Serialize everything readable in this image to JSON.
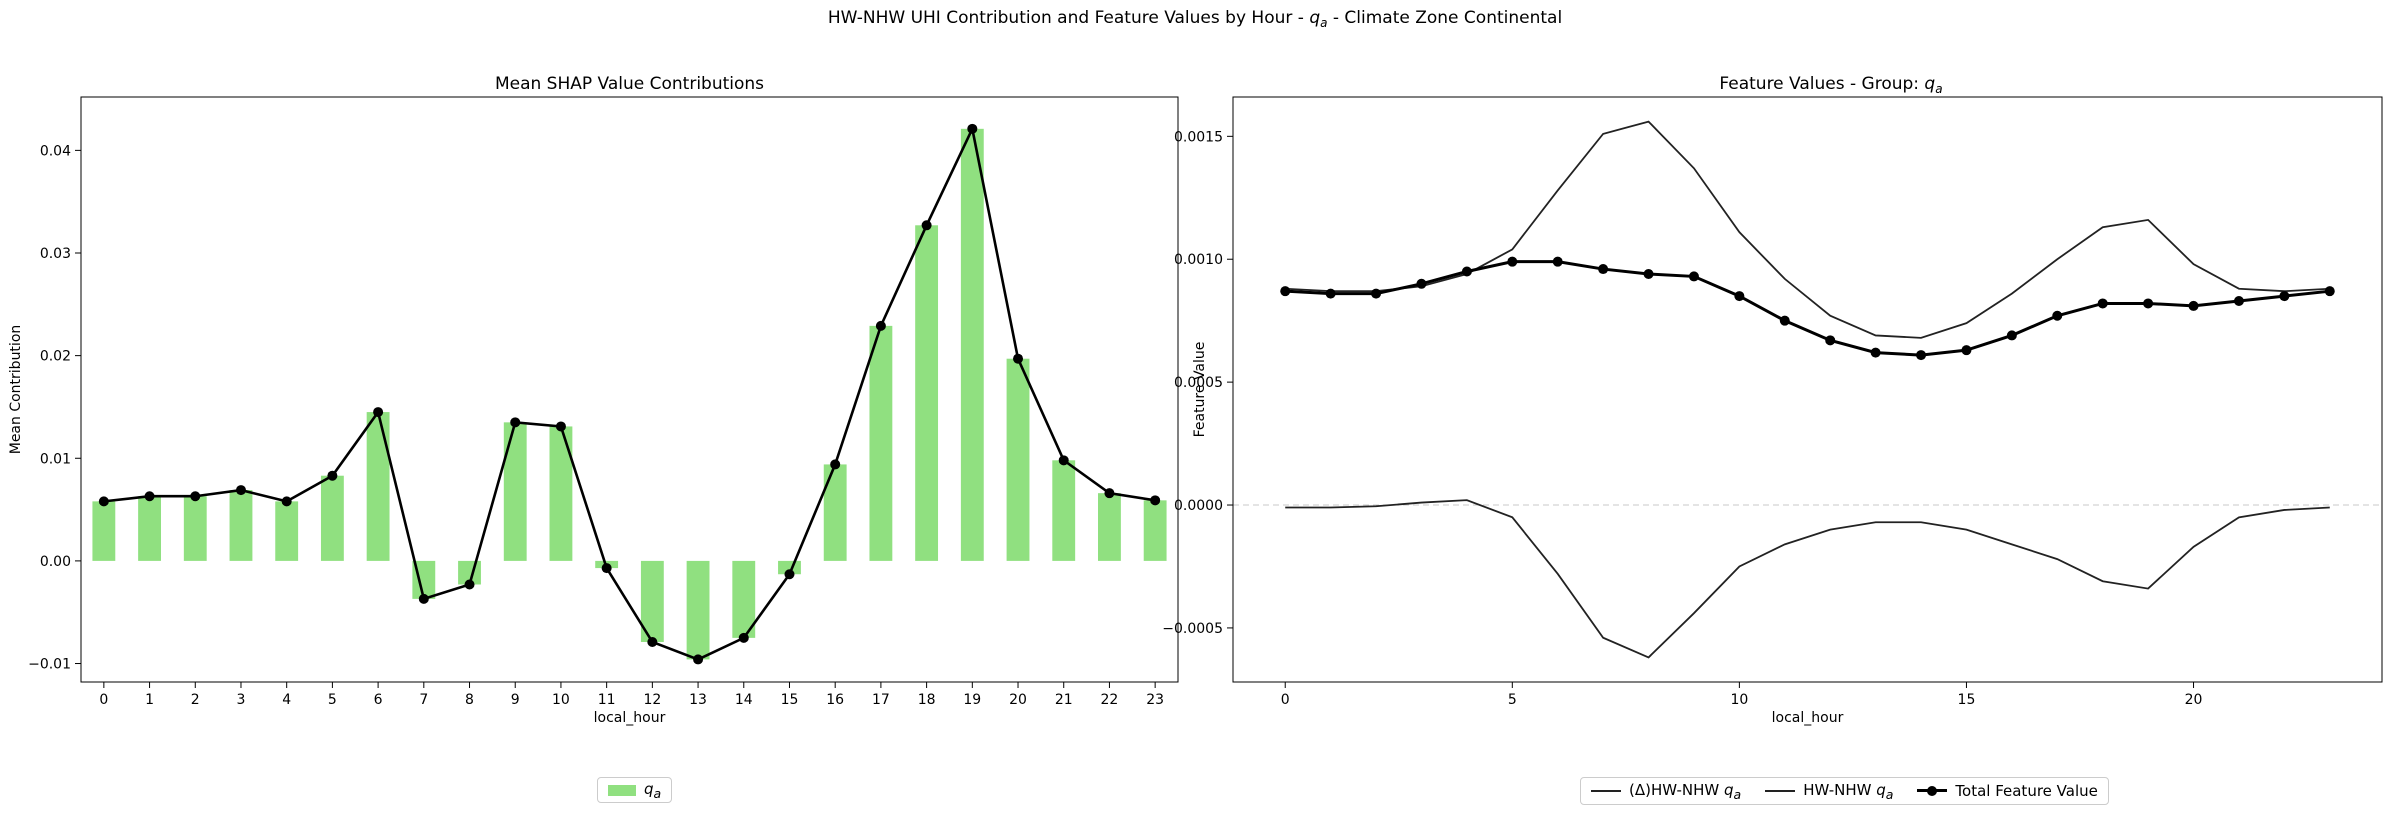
{
  "figure": {
    "suptitle": "HW-NHW UHI Contribution and Feature Values by Hour - q_a - Climate Zone Continental",
    "suptitle_pre": "HW-NHW UHI Contribution and Feature Values by Hour - ",
    "suptitle_post": " - Climate Zone Continental"
  },
  "chart_data": [
    {
      "type": "bar",
      "title": "Mean SHAP Value Contributions",
      "xlabel": "local_hour",
      "ylabel": "Mean Contribution",
      "categories": [
        "0",
        "1",
        "2",
        "3",
        "4",
        "5",
        "6",
        "7",
        "8",
        "9",
        "10",
        "11",
        "12",
        "13",
        "14",
        "15",
        "16",
        "17",
        "18",
        "19",
        "20",
        "21",
        "22",
        "23"
      ],
      "ylim": [
        -0.0118,
        0.0452
      ],
      "yticks": [
        -0.01,
        0.0,
        0.01,
        0.02,
        0.03,
        0.04
      ],
      "ytick_labels": [
        "−0.01",
        "0.00",
        "0.01",
        "0.02",
        "0.03",
        "0.04"
      ],
      "series": [
        {
          "name": "q_a",
          "kind": "bar",
          "color": "#90e080",
          "values": [
            0.0058,
            0.0063,
            0.0063,
            0.0069,
            0.0058,
            0.0083,
            0.0145,
            -0.0037,
            -0.0023,
            0.0135,
            0.0131,
            -0.0007,
            -0.0079,
            -0.0096,
            -0.0075,
            -0.0013,
            0.0094,
            0.0229,
            0.0327,
            0.0421,
            0.0197,
            0.0098,
            0.0066,
            0.0059
          ]
        },
        {
          "name": "",
          "kind": "line",
          "color": "#000000",
          "values": [
            0.0058,
            0.0063,
            0.0063,
            0.0069,
            0.0058,
            0.0083,
            0.0145,
            -0.0037,
            -0.0023,
            0.0135,
            0.0131,
            -0.0007,
            -0.0079,
            -0.0096,
            -0.0075,
            -0.0013,
            0.0094,
            0.0229,
            0.0327,
            0.0421,
            0.0197,
            0.0098,
            0.0066,
            0.0059
          ]
        }
      ],
      "legend": {
        "placement": "bottom-center",
        "entries": [
          "q_a"
        ]
      }
    },
    {
      "type": "line",
      "title": "Feature Values - Group: q_a",
      "title_pre": "Feature Values - Group: ",
      "xlabel": "local_hour",
      "ylabel": "Feature Value",
      "x": [
        0,
        1,
        2,
        3,
        4,
        5,
        6,
        7,
        8,
        9,
        10,
        11,
        12,
        13,
        14,
        15,
        16,
        17,
        18,
        19,
        20,
        21,
        22,
        23
      ],
      "xlim": [
        -1.15,
        24.15
      ],
      "xticks": [
        0,
        5,
        10,
        15,
        20
      ],
      "ylim": [
        -0.00072,
        0.00166
      ],
      "yticks": [
        -0.0005,
        0.0,
        0.0005,
        0.001,
        0.0015
      ],
      "ytick_labels": [
        "−0.0005",
        "0.0000",
        "0.0005",
        "0.0010",
        "0.0015"
      ],
      "zero_line": true,
      "series": [
        {
          "name": "(Δ)HW-NHW q_a",
          "color": "#222222",
          "values": [
            -1e-05,
            -1e-05,
            -5e-06,
            1e-05,
            2e-05,
            -5e-05,
            -0.00028,
            -0.00054,
            -0.00062,
            -0.00044,
            -0.00025,
            -0.00016,
            -0.0001,
            -7e-05,
            -7e-05,
            -0.0001,
            -0.00016,
            -0.00022,
            -0.00031,
            -0.00034,
            -0.00017,
            -5e-05,
            -2e-05,
            -1e-05
          ]
        },
        {
          "name": "HW-NHW q_a",
          "color": "#222222",
          "values": [
            0.00088,
            0.00087,
            0.00087,
            0.00089,
            0.00094,
            0.00104,
            0.00128,
            0.00151,
            0.00156,
            0.00137,
            0.00111,
            0.00092,
            0.00077,
            0.00069,
            0.00068,
            0.00074,
            0.00086,
            0.001,
            0.00113,
            0.00116,
            0.00098,
            0.00088,
            0.00087,
            0.00088
          ]
        },
        {
          "name": "Total Feature Value",
          "color": "#000000",
          "markers": true,
          "values": [
            0.00087,
            0.00086,
            0.00086,
            0.0009,
            0.00095,
            0.00099,
            0.00099,
            0.00096,
            0.00094,
            0.00093,
            0.00085,
            0.00075,
            0.00067,
            0.00062,
            0.00061,
            0.00063,
            0.00069,
            0.00077,
            0.00082,
            0.00082,
            0.00081,
            0.00083,
            0.00085,
            0.00087
          ]
        }
      ],
      "legend": {
        "placement": "bottom-center",
        "entries": [
          "(Δ)HW-NHW q_a",
          "HW-NHW q_a",
          "Total Feature Value"
        ]
      }
    }
  ],
  "legend_text": {
    "left_label_sub": "a",
    "right_delta_pre": "(Δ)HW-NHW ",
    "right_hw_pre": "HW-NHW ",
    "right_total": "Total Feature Value",
    "q": "q",
    "sub": "a"
  }
}
